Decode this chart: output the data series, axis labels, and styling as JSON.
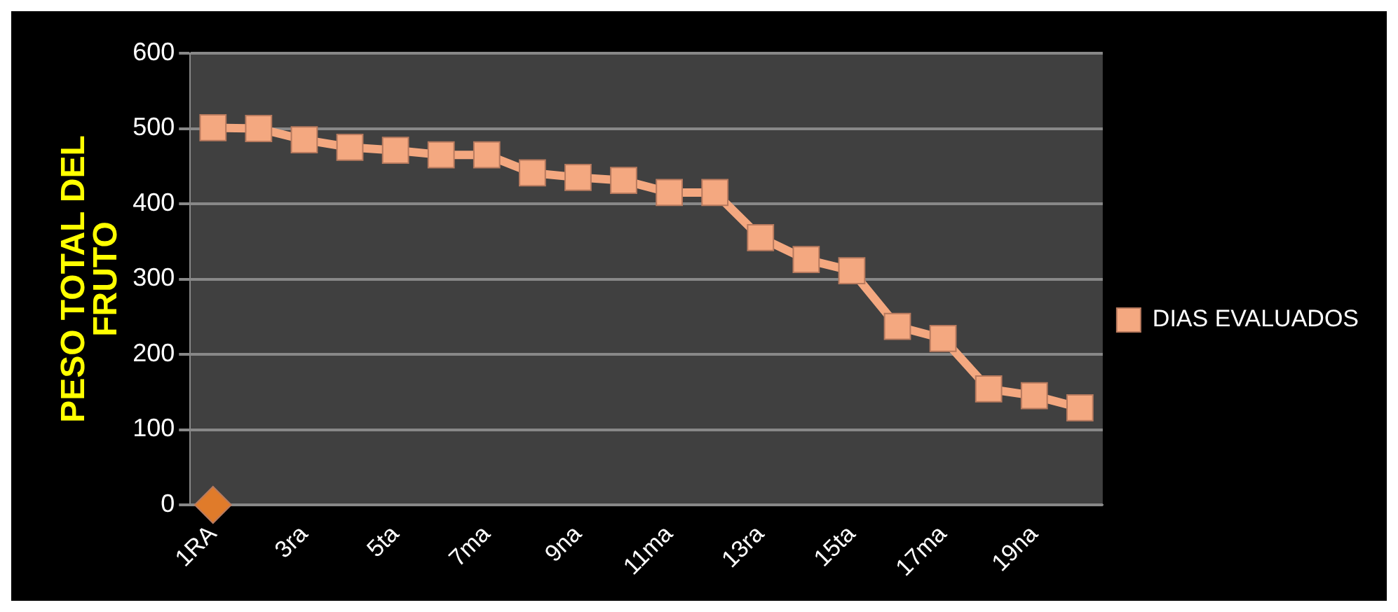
{
  "chart_data": {
    "type": "line",
    "ylabel": "PESO TOTAL DEL FRUTO",
    "categories": [
      "1RA",
      null,
      "3ra",
      null,
      "5ta",
      null,
      "7ma",
      null,
      "9na",
      null,
      "11ma",
      null,
      "13ra",
      null,
      "15ta",
      null,
      "17ma",
      null,
      "19na",
      null
    ],
    "series": [
      {
        "name": "DIAS EVALUADOS",
        "color": "#f4a880",
        "marker": "square",
        "values": [
          501,
          500,
          485,
          475,
          471,
          465,
          465,
          441,
          435,
          431,
          415,
          415,
          355,
          326,
          311,
          237,
          221,
          154,
          145,
          129
        ]
      },
      {
        "color": "#e07b2a",
        "marker": "diamond",
        "values": [
          0,
          null,
          null,
          null,
          null,
          null,
          null,
          null,
          null,
          null,
          null,
          null,
          null,
          null,
          null,
          null,
          null,
          null,
          null,
          null
        ]
      }
    ],
    "ylim": [
      0,
      600
    ],
    "yticks": [
      0,
      100,
      200,
      300,
      400,
      500,
      600
    ],
    "grid": "y",
    "legend": "right"
  }
}
